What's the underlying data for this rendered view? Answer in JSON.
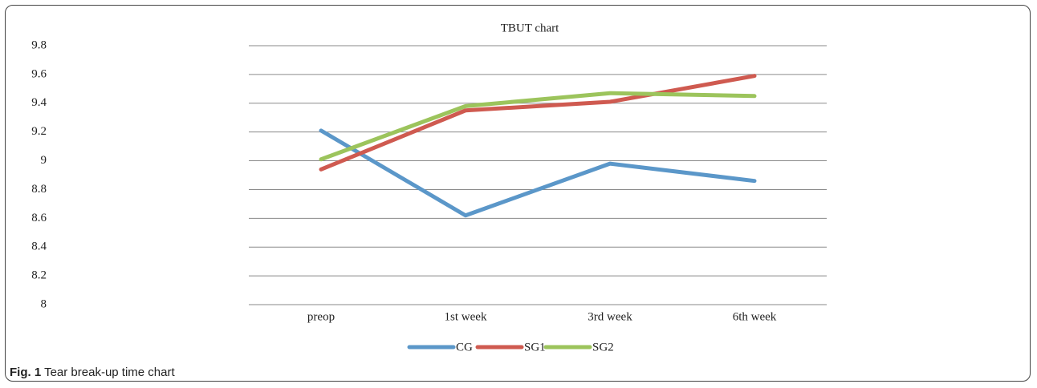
{
  "chart_data": {
    "type": "line",
    "title": "TBUT chart",
    "categories": [
      "preop",
      "1st week",
      "3rd week",
      "6th week"
    ],
    "series": [
      {
        "name": "CG",
        "color": "#5b97c9",
        "values": [
          9.21,
          8.62,
          8.98,
          8.86
        ]
      },
      {
        "name": "SG1",
        "color": "#cf5a50",
        "values": [
          8.94,
          9.35,
          9.41,
          9.59
        ]
      },
      {
        "name": "SG2",
        "color": "#9cc45c",
        "values": [
          9.01,
          9.38,
          9.47,
          9.45
        ]
      }
    ],
    "ylim": [
      8,
      9.8
    ],
    "yticks": [
      8,
      8.2,
      8.4,
      8.6,
      8.8,
      9,
      9.2,
      9.4,
      9.6,
      9.8
    ],
    "grid": true,
    "legend": "bottom"
  },
  "caption": {
    "label": "Fig. 1",
    "text": "Tear break-up time chart"
  }
}
